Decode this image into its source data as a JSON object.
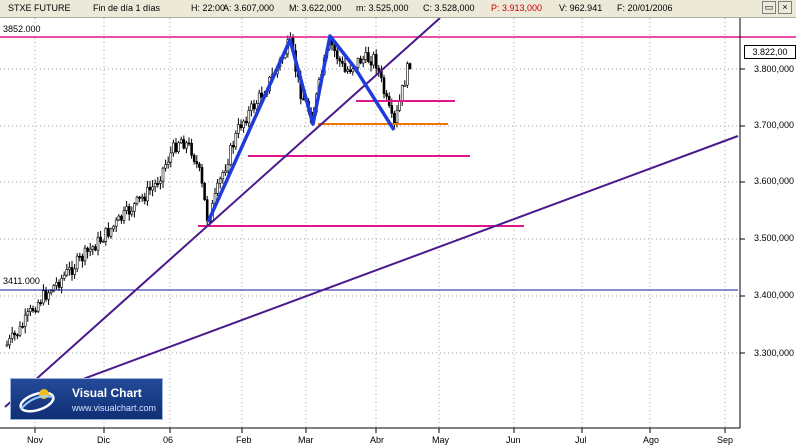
{
  "header": {
    "symbol": "STXE FUTURE",
    "period": "Fin de día 1 días",
    "hour": "H: 22:00",
    "open": "A: 3.607,000",
    "high": "M: 3.622,000",
    "low": "m: 3.525,000",
    "close": "C: 3.528,000",
    "price": "P: 3.913,000",
    "volume": "V: 962.941",
    "date": "F: 20/01/2006",
    "price_color": "#cc0000"
  },
  "window_controls": {
    "restore": "▭",
    "close": "×"
  },
  "levels": {
    "upper": "3852.000",
    "lower": "3411.000",
    "current": "3.822,00"
  },
  "y_axis": [
    "3.800,000",
    "3.700,000",
    "3.600,000",
    "3.500,000",
    "3.400,000",
    "3.300,000"
  ],
  "x_axis": [
    "Nov",
    "Dic",
    "06",
    "Feb",
    "Mar",
    "Abr",
    "May",
    "Jun",
    "Jul",
    "Ago",
    "Sep"
  ],
  "logo": {
    "title": "Visual Chart",
    "url": "www.visualchart.com"
  },
  "colors": {
    "candles": "#000000",
    "blue_pattern": "#1e3cdc",
    "trend_lines": "#4a1a8c",
    "magenta_lines": "#e0148c",
    "orange_line": "#f07800",
    "grid": "#a0a0a0",
    "level_3411": "#1a1aa0"
  }
}
